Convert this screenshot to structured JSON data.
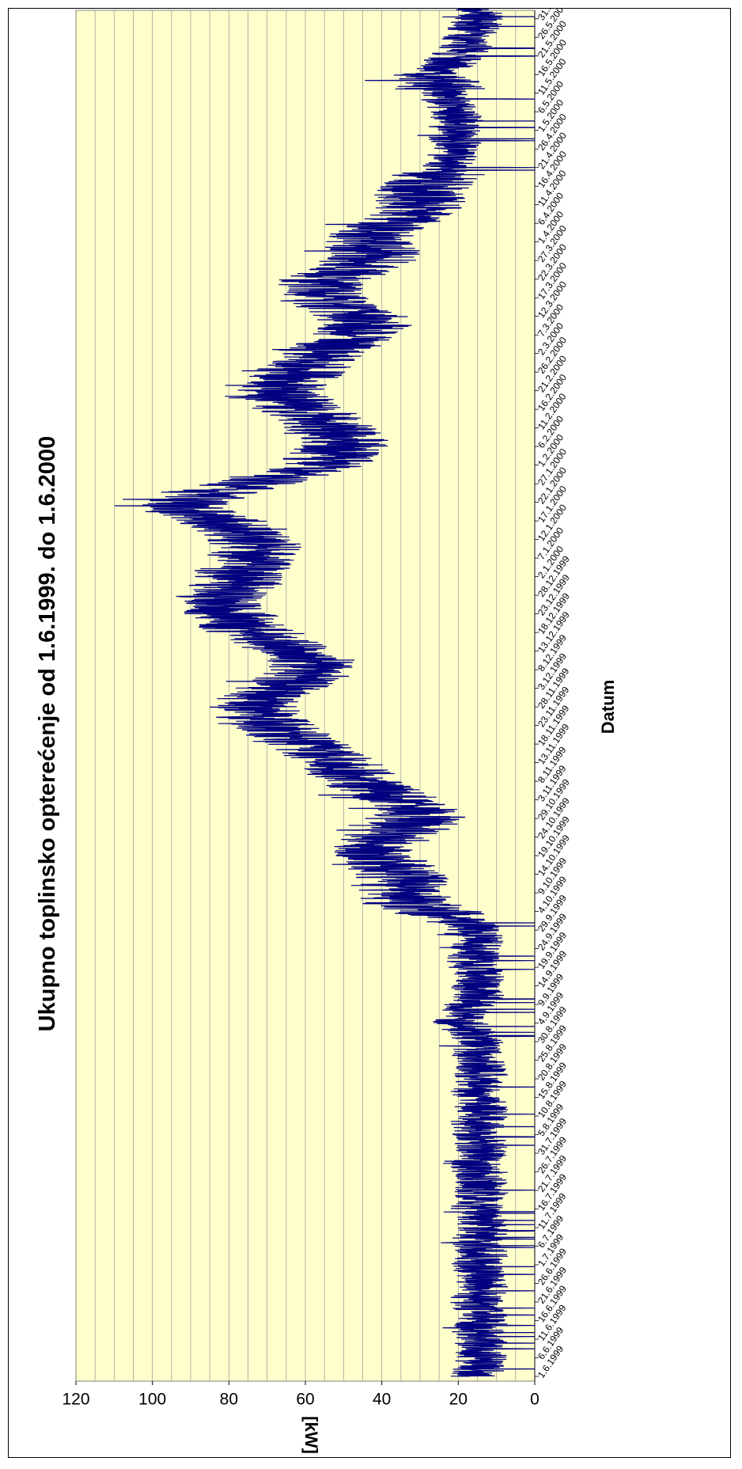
{
  "chart_data": {
    "type": "line",
    "title": "Ukupno toplinsko opterećenje od 1.6.1999. do 1.6.2000",
    "xlabel": "Datum",
    "ylabel": "[kW]",
    "ylim": [
      0,
      120
    ],
    "y_ticks": [
      "0",
      "20",
      "40",
      "60",
      "80",
      "100",
      "120"
    ],
    "grid": "horizontal every 5",
    "line_color": "#000080",
    "plot_background": "#ffffcc",
    "x_tick_labels": [
      "1.6.1999",
      "6.6.1999",
      "11.6.1999",
      "16.6.1999",
      "21.6.1999",
      "26.6.1999",
      "1.7.1999",
      "6.7.1999",
      "11.7.1999",
      "16.7.1999",
      "21.7.1999",
      "26.7.1999",
      "31.7.1999",
      "5.8.1999",
      "10.8.1999",
      "15.8.1999",
      "20.8.1999",
      "25.8.1999",
      "30.8.1999",
      "4.9.1999",
      "9.9.1999",
      "14.9.1999",
      "19.9.1999",
      "24.9.1999",
      "29.9.1999",
      "4.10.1999",
      "9.10.1999",
      "14.10.1999",
      "19.10.1999",
      "24.10.1999",
      "29.10.1999",
      "3.11.1999",
      "8.11.1999",
      "13.11.1999",
      "18.11.1999",
      "23.11.1999",
      "28.11.1999",
      "3.12.1999",
      "8.12.1999",
      "13.12.1999",
      "18.12.1999",
      "23.12.1999",
      "28.12.1999",
      "2.1.2000",
      "7.1.2000",
      "12.1.2000",
      "17.1.2000",
      "22.1.2000",
      "27.1.2000",
      "1.2.2000",
      "6.2.2000",
      "11.2.2000",
      "16.2.2000",
      "21.2.2000",
      "26.2.2000",
      "2.3.2000",
      "7.3.2000",
      "12.3.2000",
      "17.3.2000",
      "22.3.2000",
      "27.3.2000",
      "1.4.2000",
      "6.4.2000",
      "11.4.2000",
      "16.4.2000",
      "21.4.2000",
      "26.4.2000",
      "1.5.2000",
      "6.5.2000",
      "11.5.2000",
      "16.5.2000",
      "21.5.2000",
      "26.5.2000",
      "31.5.2000"
    ],
    "series": [
      {
        "date_range": [
          "1.6.1999",
          "1.6.2000"
        ],
        "daily_mean_kw": [
          15,
          15,
          15,
          14,
          14,
          14,
          15,
          15,
          15,
          14,
          14,
          14,
          15,
          15,
          14,
          14,
          14,
          15,
          16,
          16,
          15,
          15,
          14,
          14,
          14,
          14,
          14,
          14,
          15,
          15,
          15,
          14,
          14,
          14,
          14,
          15,
          15,
          15,
          14,
          14,
          14,
          14,
          14,
          14,
          15,
          15,
          15,
          15,
          14,
          14,
          14,
          14,
          14,
          14,
          14,
          15,
          15,
          15,
          15,
          14,
          14,
          14,
          14,
          14,
          14,
          15,
          15,
          15,
          15,
          14,
          14,
          14,
          14,
          14,
          14,
          15,
          15,
          15,
          15,
          15,
          14,
          14,
          14,
          14,
          14,
          15,
          15,
          15,
          15,
          15,
          15,
          16,
          17,
          18,
          19,
          20,
          20,
          19,
          18,
          17,
          16,
          15,
          15,
          15,
          15,
          15,
          15,
          15,
          15,
          15,
          16,
          16,
          16,
          16,
          15,
          15,
          15,
          15,
          15,
          15,
          16,
          17,
          19,
          22,
          25,
          28,
          31,
          33,
          34,
          34,
          35,
          35,
          34,
          34,
          35,
          36,
          37,
          38,
          40,
          41,
          42,
          42,
          41,
          40,
          39,
          38,
          36,
          34,
          32,
          31,
          30,
          31,
          32,
          33,
          35,
          37,
          39,
          41,
          43,
          45,
          47,
          48,
          48,
          49,
          50,
          52,
          54,
          56,
          58,
          60,
          62,
          63,
          65,
          66,
          67,
          69,
          70,
          72,
          73,
          74,
          74,
          73,
          72,
          70,
          67,
          65,
          63,
          62,
          60,
          59,
          58,
          58,
          59,
          60,
          62,
          64,
          66,
          68,
          70,
          72,
          74,
          76,
          77,
          78,
          79,
          80,
          81,
          82,
          82,
          82,
          81,
          80,
          79,
          78,
          78,
          78,
          77,
          76,
          75,
          74,
          74,
          73,
          73,
          73,
          74,
          74,
          75,
          76,
          78,
          81,
          84,
          87,
          90,
          92,
          92,
          90,
          87,
          84,
          80,
          76,
          72,
          68,
          64,
          60,
          57,
          55,
          54,
          53,
          52,
          51,
          50,
          50,
          51,
          52,
          53,
          54,
          55,
          56,
          58,
          60,
          62,
          63,
          64,
          65,
          66,
          66,
          65,
          64,
          63,
          62,
          61,
          60,
          59,
          58,
          57,
          56,
          54,
          52,
          50,
          48,
          46,
          45,
          44,
          44,
          45,
          47,
          49,
          51,
          53,
          55,
          56,
          57,
          57,
          56,
          55,
          53,
          51,
          49,
          47,
          45,
          43,
          42,
          42,
          43,
          44,
          44,
          43,
          42,
          40,
          38,
          36,
          34,
          33,
          32,
          31,
          30,
          30,
          30,
          30,
          29,
          28,
          27,
          26,
          25,
          24,
          23,
          22,
          22,
          22,
          22,
          22,
          21,
          21,
          21,
          21,
          21,
          21,
          20,
          20,
          21,
          21,
          22,
          22,
          23,
          23,
          24,
          25,
          25,
          26,
          26,
          25,
          24,
          23,
          22,
          21,
          20,
          19,
          18,
          18,
          17,
          17,
          16,
          16,
          15,
          15,
          15,
          15,
          15
        ]
      }
    ]
  }
}
